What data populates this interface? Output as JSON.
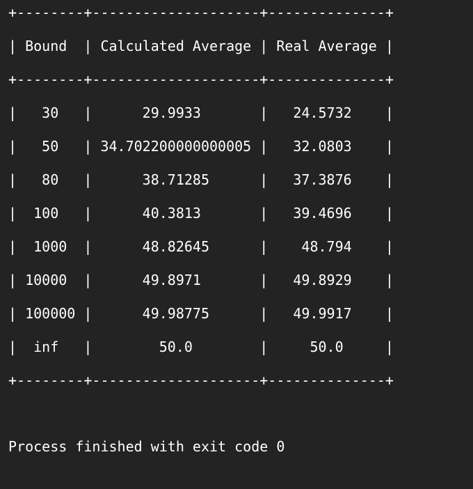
{
  "table": {
    "separator": "+--------+--------------------+--------------+",
    "header": "| Bound  | Calculated Average | Real Average |",
    "rows": [
      {
        "bound": "30",
        "calculated": "29.9933",
        "real": "24.5732",
        "line": "|   30   |      29.9933       |   24.5732    |"
      },
      {
        "bound": "50",
        "calculated": "34.702200000000005",
        "real": "32.0803",
        "line": "|   50   | 34.702200000000005 |   32.0803    |"
      },
      {
        "bound": "80",
        "calculated": "38.71285",
        "real": "37.3876",
        "line": "|   80   |      38.71285      |   37.3876    |"
      },
      {
        "bound": "100",
        "calculated": "40.3813",
        "real": "39.4696",
        "line": "|  100   |      40.3813       |   39.4696    |"
      },
      {
        "bound": "1000",
        "calculated": "48.82645",
        "real": "48.794",
        "line": "|  1000  |      48.82645      |    48.794    |"
      },
      {
        "bound": "10000",
        "calculated": "49.8971",
        "real": "49.8929",
        "line": "| 10000  |      49.8971       |   49.8929    |"
      },
      {
        "bound": "100000",
        "calculated": "49.98775",
        "real": "49.9917",
        "line": "| 100000 |      49.98775      |   49.9917    |"
      },
      {
        "bound": "inf",
        "calculated": "50.0",
        "real": "50.0",
        "line": "|  inf   |        50.0        |     50.0     |"
      }
    ]
  },
  "process": {
    "exit_message": "Process finished with exit code 0"
  },
  "colors": {
    "background": "#232323",
    "text": "#ffffff"
  }
}
